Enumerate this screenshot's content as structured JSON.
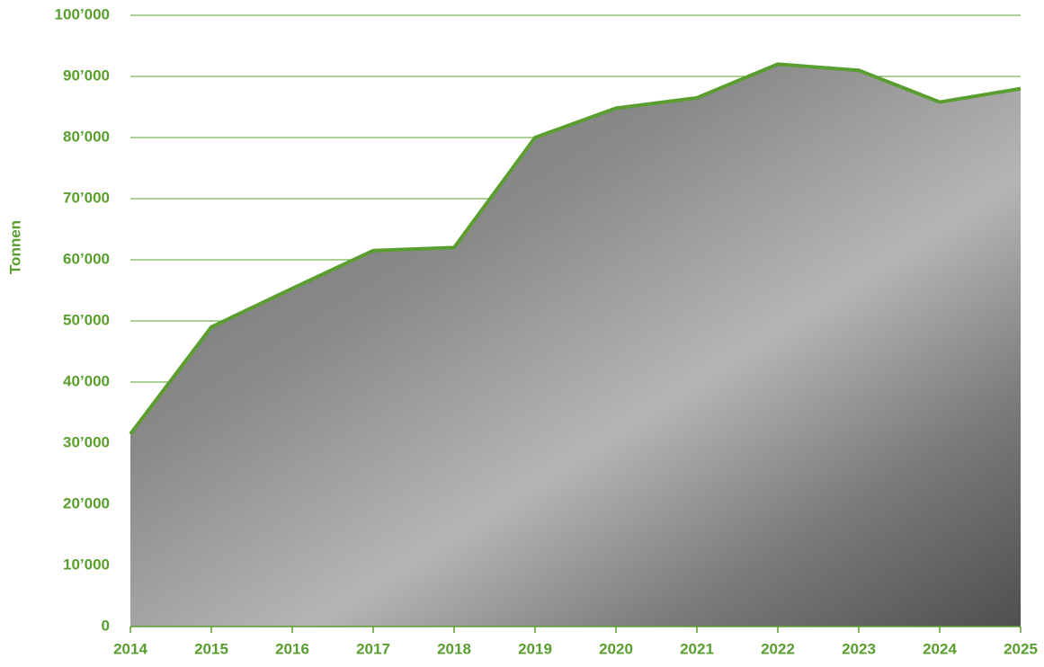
{
  "chart_data": {
    "type": "area",
    "y_label": "Tonnen",
    "x": [
      2014,
      2015,
      2016,
      2017,
      2018,
      2019,
      2020,
      2021,
      2022,
      2023,
      2024,
      2025
    ],
    "series": [
      {
        "color": "#5a9e2f",
        "values": [
          31500,
          49000,
          55300,
          61500,
          62000,
          80000,
          84800,
          86500,
          92000,
          91000,
          85800,
          88000
        ]
      }
    ],
    "xlim": [
      2014,
      2025
    ],
    "xticks": [
      2014,
      2015,
      2016,
      2017,
      2018,
      2019,
      2020,
      2021,
      2022,
      2023,
      2024,
      2025
    ],
    "ylim": [
      0,
      100000
    ],
    "yticks": [
      0,
      {
        "value": 10000,
        "label": "10’000"
      },
      {
        "value": 20000,
        "label": "20’000"
      },
      {
        "value": 30000,
        "label": "30’000"
      },
      {
        "value": 40000,
        "label": "40’000"
      },
      {
        "value": 50000,
        "label": "50’000"
      },
      {
        "value": 60000,
        "label": "60’000"
      },
      {
        "value": 70000,
        "label": "70’000"
      },
      {
        "value": 80000,
        "label": "80’000"
      },
      {
        "value": 90000,
        "label": "90’000"
      },
      {
        "value": 100000,
        "label": "100’000"
      }
    ],
    "grid": true
  }
}
